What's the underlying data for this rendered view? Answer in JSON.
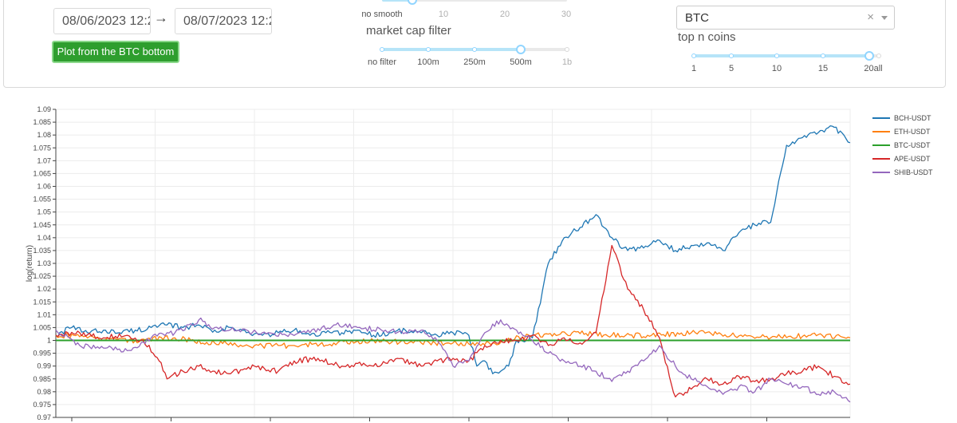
{
  "controls": {
    "date_start": "08/06/2023 12:2",
    "date_end": "08/07/2023 12:2",
    "arrow": "→",
    "plot_button": "Plot from the BTC bottom",
    "smooth_labels": [
      "no smooth",
      "10",
      "20",
      "30"
    ],
    "smooth_value": "no smooth",
    "market_cap_title": "market cap filter",
    "market_cap_labels": [
      "no filter",
      "100m",
      "250m",
      "500m",
      "1b"
    ],
    "market_cap_value": "500m",
    "coin_select_value": "BTC",
    "coin_select_clear": "×",
    "top_n_title": "top n coins",
    "top_n_labels": [
      "1",
      "5",
      "10",
      "15",
      "20all"
    ],
    "top_n_value": "20all",
    "colors": {
      "button": "#2e9e2e",
      "slider_active": "#91d5ff",
      "slider_track": "#e9e9e9"
    }
  },
  "chart_data": {
    "type": "line",
    "ylabel": "log(return)",
    "ylim": [
      0.97,
      1.09
    ],
    "y_ticks": [
      "0.97",
      "0.975",
      "0.98",
      "0.985",
      "0.99",
      "0.995",
      "1",
      "1.005",
      "1.01",
      "1.015",
      "1.02",
      "1.025",
      "1.03",
      "1.035",
      "1.04",
      "1.045",
      "1.05",
      "1.055",
      "1.06",
      "1.065",
      "1.07",
      "1.075",
      "1.08",
      "1.085",
      "1.09"
    ],
    "xlim": [
      0,
      100
    ],
    "grid": true,
    "legend_position": "right",
    "series": [
      {
        "name": "BCH-USDT",
        "color": "#1f77b4",
        "x": [
          0,
          2,
          4,
          6,
          8,
          10,
          12,
          14,
          16,
          18,
          20,
          22,
          24,
          26,
          28,
          30,
          32,
          34,
          36,
          38,
          40,
          42,
          44,
          46,
          48,
          50,
          52,
          53,
          54,
          55,
          56,
          57,
          58,
          60,
          62,
          64,
          66,
          68,
          70,
          72,
          74,
          76,
          78,
          80,
          82,
          84,
          86,
          88,
          90,
          92,
          94,
          96,
          98,
          100
        ],
        "y": [
          1.002,
          1.005,
          1.003,
          1.004,
          1.003,
          1.004,
          1.005,
          1.006,
          1.005,
          1.006,
          1.004,
          1.005,
          1.003,
          1.002,
          1.003,
          1.004,
          1.002,
          1.003,
          1.003,
          1.004,
          1.002,
          1.003,
          1.004,
          1.003,
          1.002,
          1.003,
          1.002,
          0.99,
          0.992,
          0.987,
          0.988,
          0.99,
          1.0,
          1.001,
          1.03,
          1.04,
          1.044,
          1.049,
          1.04,
          1.035,
          1.036,
          1.039,
          1.035,
          1.037,
          1.038,
          1.035,
          1.042,
          1.045,
          1.046,
          1.076,
          1.079,
          1.081,
          1.083,
          1.077
        ]
      },
      {
        "name": "ETH-USDT",
        "color": "#ff7f0e",
        "x": [
          0,
          5,
          10,
          15,
          20,
          25,
          30,
          35,
          40,
          45,
          50,
          55,
          60,
          65,
          70,
          75,
          80,
          85,
          90,
          95,
          100
        ],
        "y": [
          1.002,
          1.001,
          1.0,
          1.001,
          0.999,
          0.998,
          0.998,
          0.999,
          1.0,
          0.999,
          0.999,
          0.999,
          1.002,
          1.003,
          1.002,
          1.002,
          1.003,
          1.002,
          1.001,
          1.002,
          1.001
        ]
      },
      {
        "name": "BTC-USDT",
        "color": "#2ca02c",
        "x": [
          0,
          100
        ],
        "y": [
          1.0,
          1.0
        ]
      },
      {
        "name": "APE-USDT",
        "color": "#d62728",
        "x": [
          0,
          3,
          6,
          9,
          11,
          13,
          14,
          16,
          18,
          20,
          22,
          25,
          28,
          30,
          33,
          36,
          38,
          40,
          43,
          46,
          48,
          50,
          52,
          54,
          56,
          58,
          60,
          62,
          64,
          66,
          68,
          70,
          72,
          74,
          76,
          78,
          80,
          82,
          84,
          86,
          88,
          90,
          92,
          94,
          96,
          98,
          100
        ],
        "y": [
          1.002,
          1.003,
          1.001,
          1.002,
          1.0,
          0.992,
          0.985,
          0.988,
          0.99,
          0.988,
          0.987,
          0.99,
          0.988,
          0.992,
          0.993,
          0.99,
          0.991,
          0.99,
          0.993,
          0.99,
          0.992,
          0.993,
          0.992,
          0.998,
          1.0,
          1.0,
          1.002,
          0.998,
          1.001,
          0.999,
          1.003,
          1.037,
          1.02,
          1.012,
          1.001,
          0.978,
          0.981,
          0.985,
          0.983,
          0.986,
          0.984,
          0.985,
          0.987,
          0.988,
          0.99,
          0.986,
          0.983
        ]
      },
      {
        "name": "SHIB-USDT",
        "color": "#9467bd",
        "x": [
          0,
          3,
          6,
          9,
          12,
          15,
          18,
          20,
          23,
          26,
          29,
          32,
          35,
          38,
          41,
          44,
          46,
          48,
          50,
          52,
          54,
          56,
          58,
          60,
          62,
          64,
          66,
          68,
          70,
          72,
          74,
          76,
          78,
          80,
          82,
          84,
          86,
          88,
          90,
          92,
          94,
          96,
          98,
          100
        ],
        "y": [
          1.004,
          0.998,
          0.997,
          0.996,
          1.001,
          1.003,
          1.008,
          1.005,
          1.004,
          1.003,
          1.002,
          1.003,
          1.006,
          1.005,
          1.004,
          1.003,
          1.004,
          1.0,
          0.99,
          0.992,
          1.003,
          1.008,
          1.004,
          1.0,
          0.995,
          0.992,
          0.99,
          0.988,
          0.984,
          0.988,
          0.992,
          0.998,
          0.99,
          0.985,
          0.982,
          0.979,
          0.982,
          0.98,
          0.985,
          0.983,
          0.982,
          0.979,
          0.98,
          0.976
        ]
      }
    ]
  }
}
